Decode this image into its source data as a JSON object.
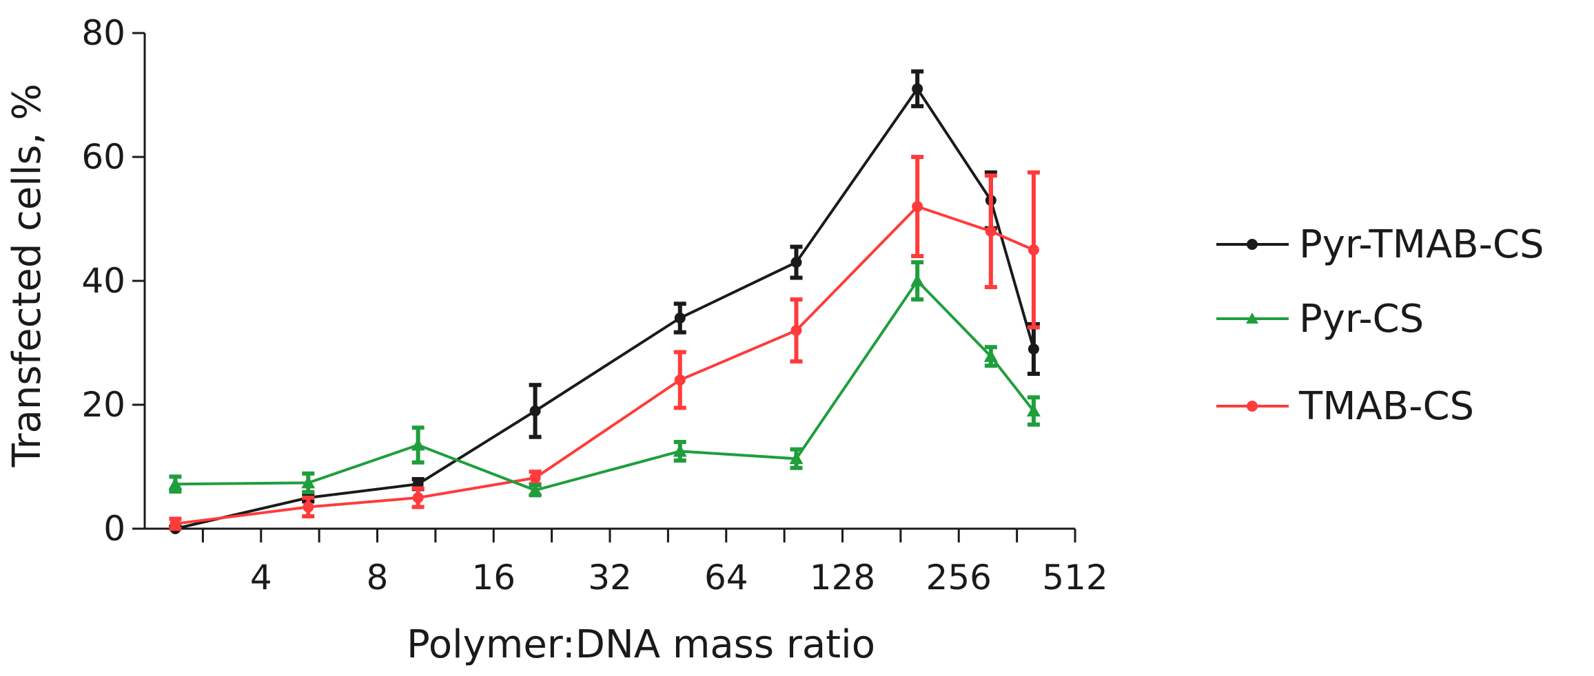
{
  "chart_data": {
    "type": "line",
    "title": "",
    "xlabel": "Polymer:DNA mass ratio",
    "ylabel": "Transfected cells, %",
    "x_scale": "log2",
    "xlim": [
      2,
      512
    ],
    "ylim": [
      0,
      80
    ],
    "x_ticks": [
      4,
      8,
      16,
      32,
      64,
      128,
      256,
      512
    ],
    "x_tick_labels": [
      "4",
      "8",
      "16",
      "32",
      "64",
      "128",
      "256",
      "512"
    ],
    "y_ticks": [
      0,
      20,
      40,
      60,
      80
    ],
    "y_tick_labels": [
      "0",
      "20",
      "40",
      "60",
      "80"
    ],
    "grid": false,
    "legend_position": "right",
    "x": [
      2.4,
      5.3,
      10.2,
      20.5,
      48.6,
      97.2,
      200,
      310,
      400
    ],
    "series": [
      {
        "name": "Pyr-TMAB-CS",
        "color": "#1a1a1a",
        "marker": "circle",
        "values": [
          0,
          5,
          7.2,
          19,
          34,
          43,
          71,
          53,
          29
        ],
        "errors": [
          0.3,
          0.6,
          0.8,
          4.2,
          2.3,
          2.5,
          2.8,
          4.5,
          4
        ]
      },
      {
        "name": "Pyr-CS",
        "color": "#1f9e3c",
        "marker": "triangle",
        "values": [
          7.2,
          7.4,
          13.5,
          6.2,
          12.5,
          11.3,
          40,
          27.8,
          19
        ],
        "errors": [
          1.2,
          1.5,
          2.8,
          0.8,
          1.5,
          1.5,
          3,
          1.5,
          2.2
        ]
      },
      {
        "name": "TMAB-CS",
        "color": "#ff3b3b",
        "marker": "circle",
        "values": [
          0.8,
          3.5,
          5,
          8.2,
          24,
          32,
          52,
          48,
          45
        ],
        "errors": [
          0.8,
          1.5,
          1.5,
          1,
          4.5,
          5,
          8,
          9,
          12.5
        ]
      }
    ]
  }
}
